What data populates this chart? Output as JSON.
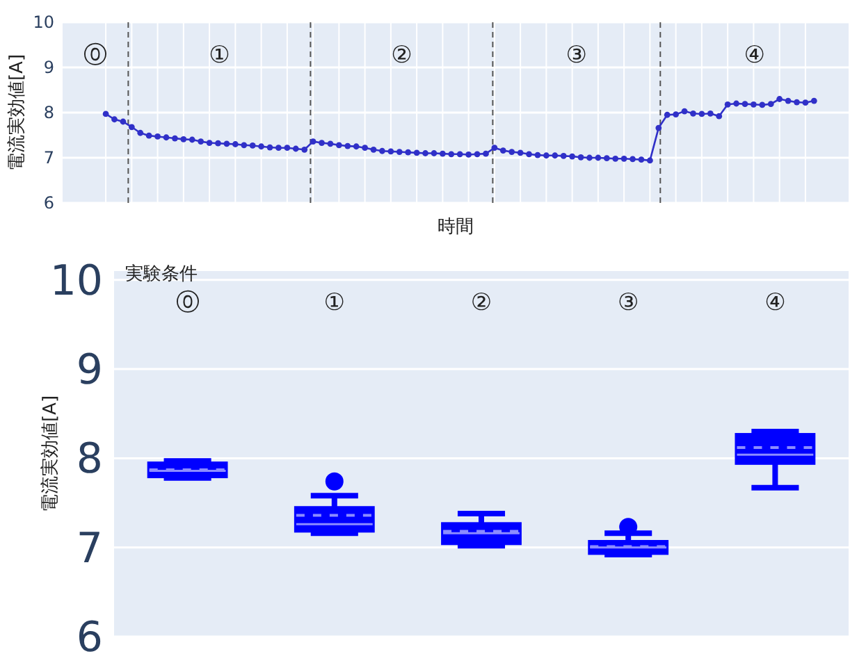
{
  "chart_data": [
    {
      "type": "line",
      "xlabel": "時間",
      "ylabel": "電流実効値[A]",
      "ylim": [
        6,
        10
      ],
      "yticks": [
        6,
        7,
        8,
        9,
        10
      ],
      "grid": true,
      "marker": "circle",
      "line_style": "solid",
      "tick_labels": "y",
      "categories": [
        null,
        null,
        null,
        null,
        null,
        null,
        null,
        null,
        null,
        null,
        null,
        null,
        null,
        null,
        null,
        null,
        null,
        null,
        null,
        null,
        null,
        null,
        null,
        null,
        null,
        null,
        null,
        null,
        null,
        null,
        null,
        null,
        null,
        null,
        null,
        null,
        null,
        null,
        null,
        null,
        null,
        null,
        null,
        null,
        null,
        null,
        null,
        null,
        null,
        null,
        null,
        null,
        null,
        null,
        null,
        null,
        null,
        null,
        null,
        null,
        null,
        null,
        null,
        null,
        null,
        null,
        null,
        null,
        null,
        null,
        null,
        null,
        null,
        null,
        null,
        null,
        null,
        null,
        null,
        null,
        null,
        null,
        null
      ],
      "series": [
        {
          "color": "#3030c8",
          "values": [
            7.97,
            7.85,
            7.8,
            7.68,
            7.55,
            7.49,
            7.47,
            7.45,
            7.43,
            7.41,
            7.4,
            7.36,
            7.33,
            7.32,
            7.31,
            7.3,
            7.28,
            7.27,
            7.25,
            7.23,
            7.22,
            7.22,
            7.2,
            7.18,
            7.36,
            7.33,
            7.31,
            7.28,
            7.26,
            7.25,
            7.22,
            7.18,
            7.15,
            7.14,
            7.13,
            7.12,
            7.11,
            7.1,
            7.1,
            7.09,
            7.08,
            7.08,
            7.07,
            7.08,
            7.09,
            7.22,
            7.16,
            7.13,
            7.11,
            7.08,
            7.06,
            7.05,
            7.05,
            7.04,
            7.03,
            7.01,
            7.0,
            7.0,
            6.99,
            6.98,
            6.98,
            6.97,
            6.96,
            6.94,
            7.66,
            7.95,
            7.96,
            8.03,
            7.98,
            7.97,
            7.98,
            7.92,
            8.18,
            8.2,
            8.19,
            8.18,
            8.17,
            8.19,
            8.3,
            8.26,
            8.23,
            8.22,
            8.26
          ]
        }
      ],
      "annotations": [
        "⓪",
        "①",
        "②",
        "③",
        "④"
      ]
    },
    {
      "type": "box",
      "xlabel": "実験条件",
      "ylabel": "電流実効値[A]",
      "ylim": [
        6,
        10.1
      ],
      "yticks": [
        6,
        7,
        8,
        9,
        10
      ],
      "grid": "y",
      "categories": [
        "⓪",
        "①",
        "②",
        "③",
        "④"
      ],
      "series": [
        {
          "color": "#0000ff",
          "boxes": [
            {
              "low": 7.78,
              "q1": 7.8,
              "median": 7.86,
              "q3": 7.94,
              "high": 7.97,
              "mean": 7.87
            },
            {
              "low": 7.16,
              "q1": 7.19,
              "median": 7.26,
              "q3": 7.44,
              "high": 7.58,
              "mean": 7.36,
              "outliers": [
                7.74
              ]
            },
            {
              "low": 7.02,
              "q1": 7.05,
              "median": 7.16,
              "q3": 7.26,
              "high": 7.38,
              "mean": 7.18
            },
            {
              "low": 6.92,
              "q1": 6.94,
              "median": 7.0,
              "q3": 7.06,
              "high": 7.16,
              "mean": 7.01,
              "outliers": [
                7.23
              ]
            },
            {
              "low": 7.67,
              "q1": 7.95,
              "median": 8.04,
              "q3": 8.26,
              "high": 8.3,
              "mean": 8.12
            }
          ]
        }
      ]
    }
  ]
}
